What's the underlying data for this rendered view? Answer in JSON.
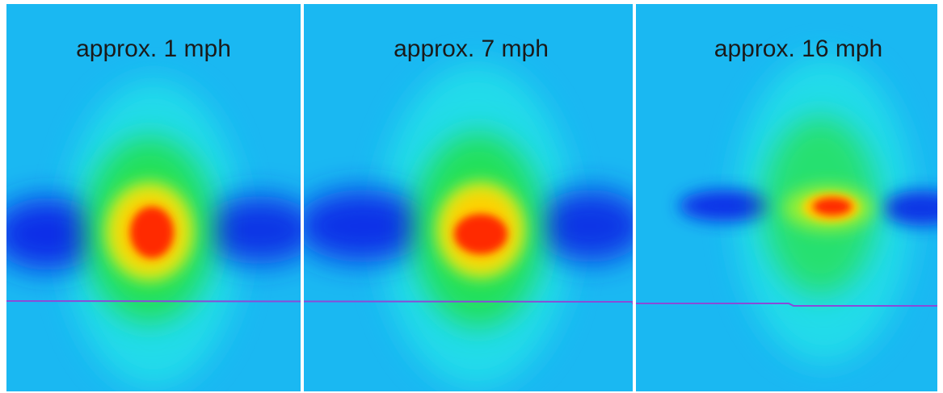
{
  "panels": [
    {
      "label": "approx. 1 mph"
    },
    {
      "label": "approx. 7 mph"
    },
    {
      "label": "approx. 16 mph"
    }
  ]
}
